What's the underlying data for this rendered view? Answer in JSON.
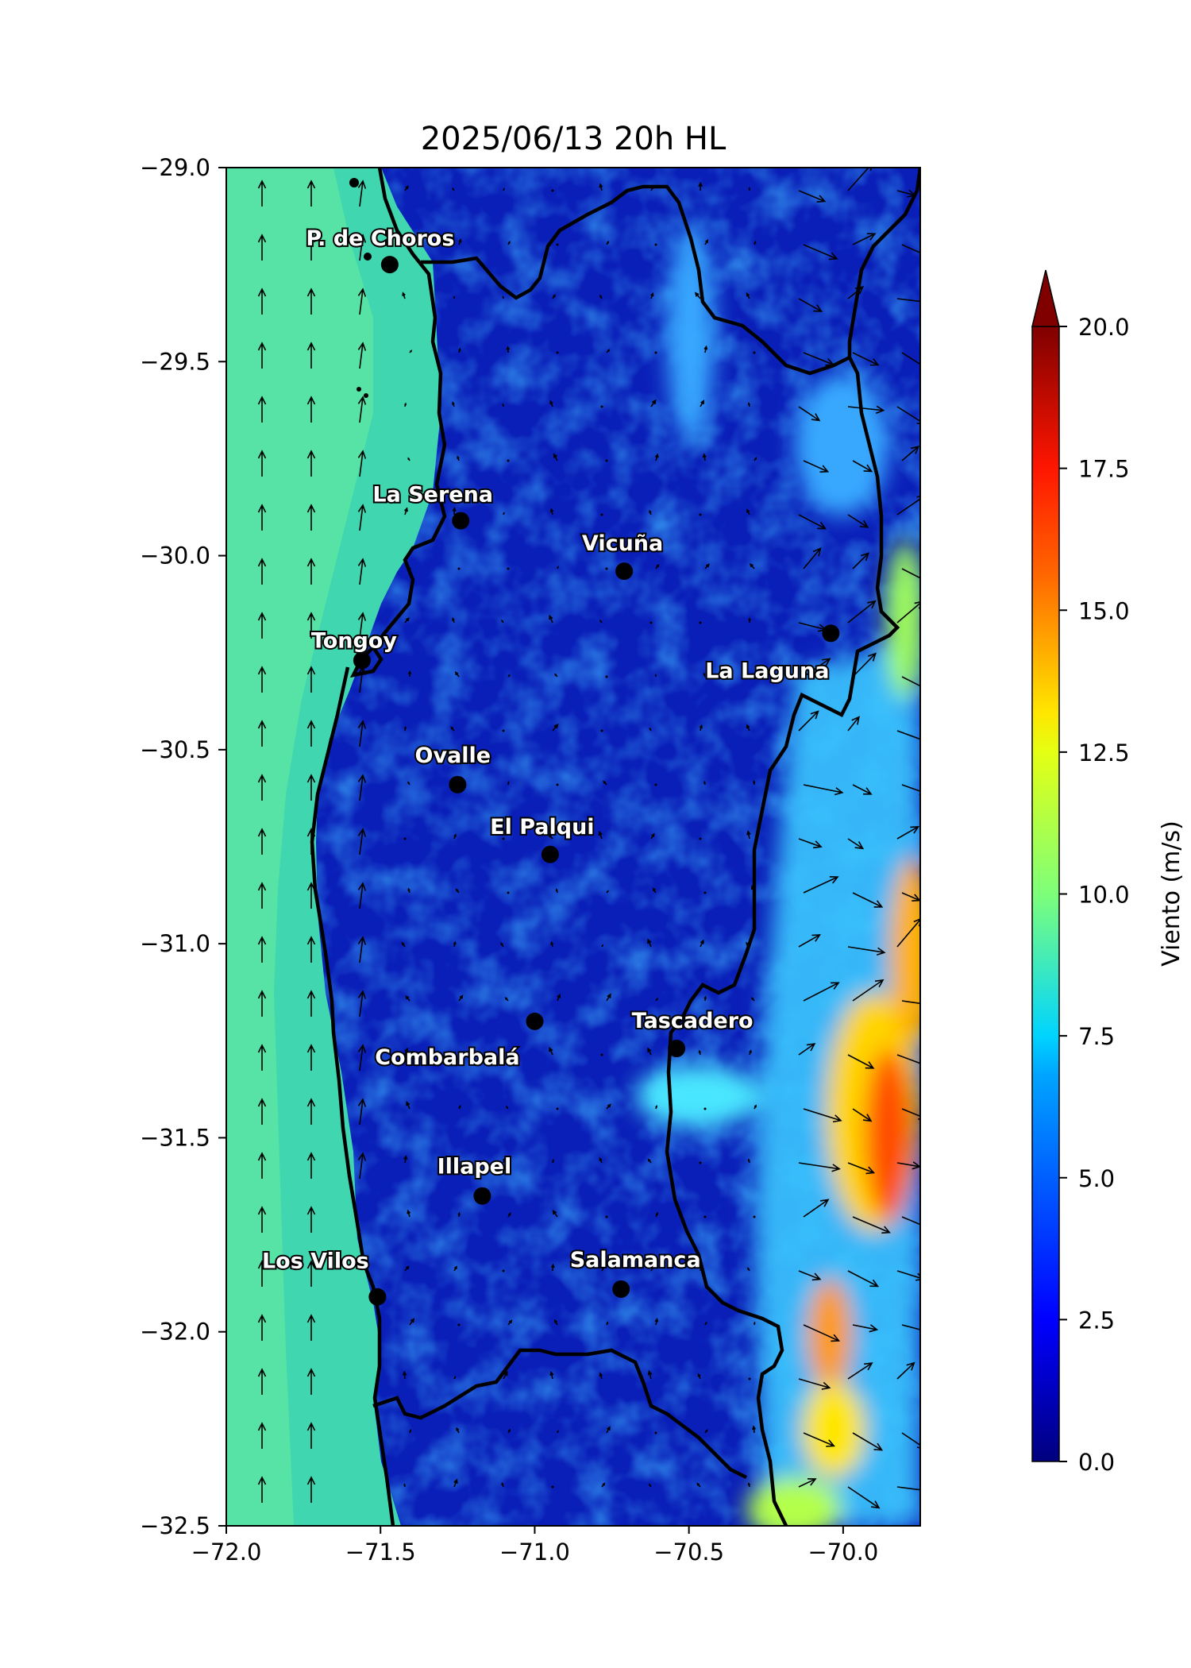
{
  "title": "2025/06/13 20h HL",
  "map": {
    "lon_range": [
      -72.0,
      -69.75
    ],
    "lat_range": [
      -32.5,
      -29.0
    ],
    "x_ticks": [
      -72.0,
      -71.5,
      -71.0,
      -70.5,
      -70.0
    ],
    "y_ticks": [
      -29.0,
      -29.5,
      -30.0,
      -30.5,
      -31.0,
      -31.5,
      -32.0,
      -32.5
    ],
    "x_tick_labels": [
      "−72.0",
      "−71.5",
      "−71.0",
      "−70.5",
      "−70.0"
    ],
    "y_tick_labels": [
      "−29.0",
      "−29.5",
      "−30.0",
      "−30.5",
      "−31.0",
      "−31.5",
      "−32.0",
      "−32.5"
    ],
    "colormap": "jet",
    "ocean_wind_ms": 8.5,
    "inland_wind_ms": 2.0,
    "andes_wind_ms": 12.0
  },
  "cities": [
    {
      "name": "P. de Choros",
      "lon": -71.47,
      "lat": -29.25
    },
    {
      "name": "La Serena",
      "lon": -71.24,
      "lat": -29.91
    },
    {
      "name": "Vicuña",
      "lon": -70.71,
      "lat": -30.04
    },
    {
      "name": "Tongoy",
      "lon": -71.56,
      "lat": -30.27
    },
    {
      "name": "La Laguna",
      "lon": -70.04,
      "lat": -30.2
    },
    {
      "name": "Ovalle",
      "lon": -71.25,
      "lat": -30.59
    },
    {
      "name": "El Palqui",
      "lon": -70.95,
      "lat": -30.77
    },
    {
      "name": "Combarbalá",
      "lon": -71.0,
      "lat": -31.2
    },
    {
      "name": "Tascadero",
      "lon": -70.54,
      "lat": -31.27
    },
    {
      "name": "Illapel",
      "lon": -71.17,
      "lat": -31.65
    },
    {
      "name": "Los Vilos",
      "lon": -71.51,
      "lat": -31.91
    },
    {
      "name": "Salamanca",
      "lon": -70.72,
      "lat": -31.89
    }
  ],
  "colorbar": {
    "label": "Viento (m/s)",
    "min": 0.0,
    "max": 20.0,
    "ticks": [
      "0.0",
      "2.5",
      "5.0",
      "7.5",
      "10.0",
      "12.5",
      "15.0",
      "17.5",
      "20.0"
    ],
    "extend": "max"
  }
}
